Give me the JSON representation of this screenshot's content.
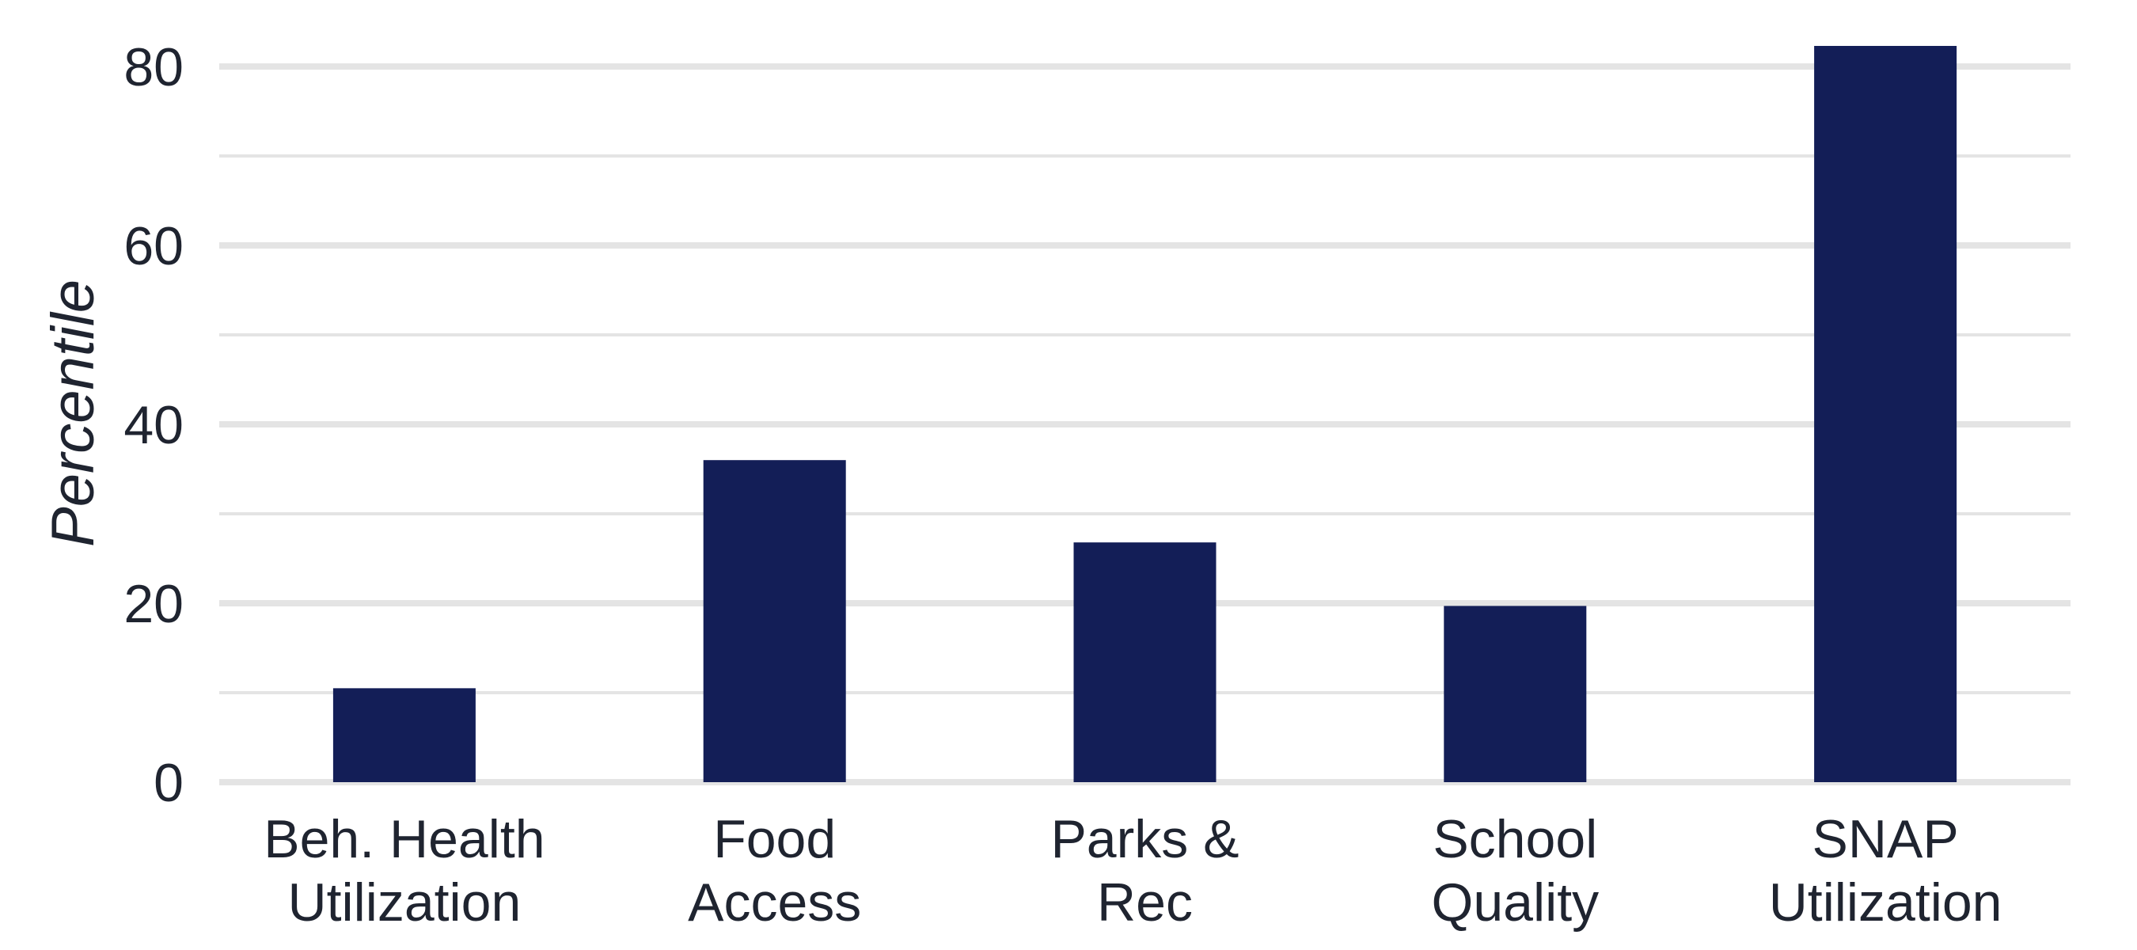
{
  "chart_data": {
    "type": "bar",
    "categories": [
      [
        "Beh. Health",
        "Utilization"
      ],
      [
        "Food",
        "Access"
      ],
      [
        "Parks &",
        "Rec"
      ],
      [
        "School",
        "Quality"
      ],
      [
        "SNAP",
        "Utilization"
      ]
    ],
    "values": [
      10.5,
      36,
      26.8,
      19.7,
      82.3
    ],
    "title": "",
    "xlabel": "",
    "ylabel": "Percentile",
    "ylim": [
      0,
      80
    ],
    "yticks": [
      0,
      20,
      40,
      60,
      80
    ],
    "minor_yticks": [
      10,
      30,
      50,
      70
    ],
    "grid": true,
    "legend": "none",
    "bar_color": "#131e57",
    "grid_color": "#e4e4e4"
  }
}
